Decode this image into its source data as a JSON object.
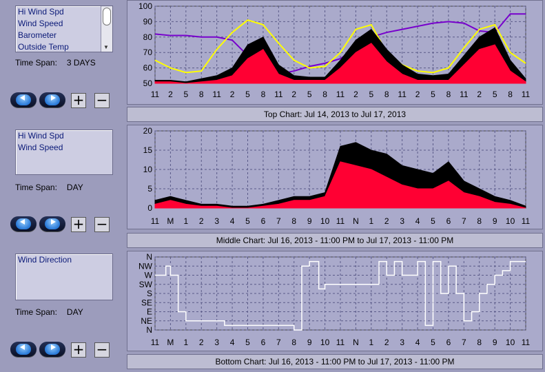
{
  "panels": [
    {
      "list": [
        "Hi Wind Spd",
        "Wind Speed",
        "Barometer",
        "Outside Temp"
      ],
      "scroll": true,
      "time_span_label": "Time Span:",
      "time_span_value": "3 DAYS",
      "caption": "Top Chart:  Jul 14, 2013  to  Jul 17, 2013"
    },
    {
      "list": [
        "Hi Wind Spd",
        "Wind Speed"
      ],
      "scroll": false,
      "time_span_label": "Time Span:",
      "time_span_value": "DAY",
      "caption": "Middle Chart:  Jul 16, 2013 - 11:00 PM  to  Jul 17, 2013 - 11:00 PM"
    },
    {
      "list": [
        "Wind Direction"
      ],
      "scroll": false,
      "time_span_label": "Time Span:",
      "time_span_value": "DAY",
      "caption": "Bottom Chart:  Jul 16, 2013 - 11:00 PM  to  Jul 17, 2013 - 11:00 PM"
    }
  ],
  "colors": {
    "hi_wind": "#000000",
    "wind": "#ff0033",
    "barometer": "#7700cc",
    "temp": "#ffff00",
    "direction": "#ffffff",
    "grid": "#5a5a88"
  },
  "chart_data": [
    {
      "type": "line",
      "title": "",
      "ylim": [
        50,
        100
      ],
      "yticks": [
        50,
        60,
        70,
        80,
        90,
        100
      ],
      "x_tick_labels": [
        "11",
        "2",
        "5",
        "8",
        "11",
        "2",
        "5",
        "8",
        "11",
        "2",
        "5",
        "8",
        "11",
        "2",
        "5",
        "8",
        "11",
        "2",
        "5",
        "8",
        "11",
        "2",
        "5",
        "8",
        "11"
      ],
      "series": [
        {
          "key": "barometer",
          "x": [
            0,
            1,
            2,
            3,
            4,
            5,
            6,
            7,
            8,
            9,
            10,
            11,
            12,
            13,
            14,
            15,
            16,
            17,
            18,
            19,
            20,
            21,
            22,
            23,
            24
          ],
          "values": [
            82,
            81,
            81,
            80,
            80,
            78,
            68,
            60,
            56,
            58,
            61,
            63,
            66,
            73,
            80,
            83,
            85,
            87,
            89,
            90,
            89,
            84,
            83,
            95,
            95
          ]
        },
        {
          "key": "temp",
          "x": [
            0,
            1,
            2,
            3,
            4,
            5,
            6,
            7,
            8,
            9,
            10,
            11,
            12,
            13,
            14,
            15,
            16,
            17,
            18,
            19,
            20,
            21,
            22,
            23,
            24
          ],
          "values": [
            65,
            60,
            57,
            58,
            72,
            83,
            91,
            88,
            76,
            65,
            60,
            61,
            70,
            85,
            88,
            70,
            62,
            58,
            57,
            60,
            73,
            85,
            88,
            70,
            63
          ]
        },
        {
          "key": "hi_wind",
          "x": [
            0,
            1,
            2,
            3,
            4,
            5,
            6,
            7,
            8,
            9,
            10,
            11,
            12,
            13,
            14,
            15,
            16,
            17,
            18,
            19,
            20,
            21,
            22,
            23,
            24
          ],
          "values": [
            52,
            52,
            51,
            53,
            55,
            60,
            75,
            80,
            62,
            55,
            54,
            54,
            65,
            78,
            85,
            72,
            62,
            56,
            55,
            56,
            68,
            80,
            86,
            65,
            53
          ]
        },
        {
          "key": "wind",
          "x": [
            0,
            1,
            2,
            3,
            4,
            5,
            6,
            7,
            8,
            9,
            10,
            11,
            12,
            13,
            14,
            15,
            16,
            17,
            18,
            19,
            20,
            21,
            22,
            23,
            24
          ],
          "values": [
            51,
            51,
            50,
            51,
            52,
            55,
            66,
            72,
            56,
            52,
            52,
            52,
            60,
            70,
            76,
            64,
            56,
            52,
            52,
            52,
            62,
            72,
            75,
            58,
            51
          ]
        }
      ]
    },
    {
      "type": "line",
      "title": "",
      "ylim": [
        0,
        20
      ],
      "yticks": [
        0,
        5,
        10,
        15,
        20
      ],
      "x_tick_labels": [
        "11",
        "M",
        "1",
        "2",
        "3",
        "4",
        "5",
        "6",
        "7",
        "8",
        "9",
        "10",
        "11",
        "N",
        "1",
        "2",
        "3",
        "4",
        "5",
        "6",
        "7",
        "8",
        "9",
        "10",
        "11"
      ],
      "series": [
        {
          "key": "hi_wind",
          "x": [
            0,
            1,
            2,
            3,
            4,
            5,
            6,
            7,
            8,
            9,
            10,
            11,
            12,
            13,
            14,
            15,
            16,
            17,
            18,
            19,
            20,
            21,
            22,
            23,
            24
          ],
          "values": [
            2,
            3,
            2,
            1,
            1,
            0.5,
            0.5,
            1,
            2,
            3,
            3,
            4,
            16,
            17,
            15,
            14,
            11,
            10,
            9,
            12,
            7,
            5,
            3,
            2,
            0.5
          ]
        },
        {
          "key": "wind",
          "x": [
            0,
            1,
            2,
            3,
            4,
            5,
            6,
            7,
            8,
            9,
            10,
            11,
            12,
            13,
            14,
            15,
            16,
            17,
            18,
            19,
            20,
            21,
            22,
            23,
            24
          ],
          "values": [
            1,
            2,
            1,
            0.5,
            0.5,
            0,
            0,
            0.5,
            1,
            2,
            2,
            3,
            12,
            11,
            10,
            8,
            6,
            5,
            5,
            7,
            4,
            3,
            1.5,
            1,
            0
          ]
        }
      ]
    },
    {
      "type": "line",
      "title": "",
      "yticks": [
        "N",
        "NE",
        "E",
        "SE",
        "S",
        "SW",
        "W",
        "NW",
        "N"
      ],
      "x_tick_labels": [
        "11",
        "M",
        "1",
        "2",
        "3",
        "4",
        "5",
        "6",
        "7",
        "8",
        "9",
        "10",
        "11",
        "N",
        "1",
        "2",
        "3",
        "4",
        "5",
        "6",
        "7",
        "8",
        "9",
        "10",
        "11"
      ],
      "series": [
        {
          "key": "direction",
          "x": [
            0,
            0.7,
            1,
            1.5,
            2,
            3,
            4,
            4.5,
            5,
            6,
            7,
            8,
            9,
            9.5,
            10,
            10.6,
            11,
            11.5,
            12,
            13,
            14,
            14.5,
            15,
            15.5,
            16,
            17,
            17.5,
            18,
            18.5,
            19,
            19.5,
            20,
            20.5,
            21,
            21.5,
            22,
            22.5,
            23,
            24
          ],
          "values": [
            6,
            7,
            6,
            2,
            1,
            1,
            1,
            0.5,
            0.5,
            0.5,
            0.5,
            0.5,
            0,
            7,
            7.5,
            4.5,
            5,
            5,
            5,
            5,
            5,
            7.5,
            6,
            7.5,
            6,
            7.5,
            0.5,
            7.5,
            4,
            7,
            4,
            1,
            2,
            4,
            5,
            6,
            6.5,
            7.5,
            7.5
          ]
        }
      ]
    }
  ]
}
